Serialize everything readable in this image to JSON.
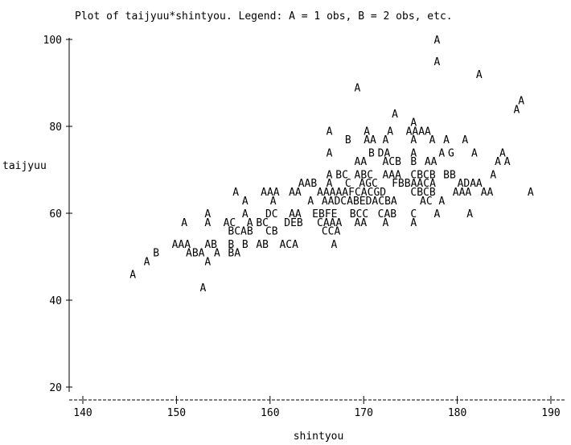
{
  "chart_data": {
    "type": "scatter",
    "title": "Plot of taijyuu*shintyou.  Legend: A = 1 obs, B = 2 obs, etc.",
    "xlabel": "shintyou",
    "ylabel": "taijyuu",
    "xlim": [
      138.5,
      192
    ],
    "ylim": [
      18.5,
      101.5
    ],
    "x_ticks": [
      140,
      150,
      160,
      170,
      180,
      190
    ],
    "y_ticks": [
      20,
      40,
      60,
      80,
      100
    ],
    "legend_note": "symbol letter encodes count: A = 1 obs, B = 2 obs, C = 3 obs, ...",
    "points": [
      {
        "x": 177.5,
        "y": 100,
        "label": "A"
      },
      {
        "x": 177.5,
        "y": 95,
        "label": "A"
      },
      {
        "x": 182.0,
        "y": 92,
        "label": "A"
      },
      {
        "x": 169.0,
        "y": 89,
        "label": "A"
      },
      {
        "x": 186.5,
        "y": 86,
        "label": "A"
      },
      {
        "x": 186.0,
        "y": 84,
        "label": "A"
      },
      {
        "x": 173.0,
        "y": 83,
        "label": "A"
      },
      {
        "x": 175.0,
        "y": 81,
        "label": "A"
      },
      {
        "x": 166.0,
        "y": 79,
        "label": "A"
      },
      {
        "x": 170.0,
        "y": 79,
        "label": "A"
      },
      {
        "x": 172.5,
        "y": 79,
        "label": "A"
      },
      {
        "x": 174.5,
        "y": 79,
        "label": "AAAA"
      },
      {
        "x": 168.0,
        "y": 77,
        "label": "B"
      },
      {
        "x": 170.0,
        "y": 77,
        "label": "AA"
      },
      {
        "x": 172.0,
        "y": 77,
        "label": "A"
      },
      {
        "x": 175.0,
        "y": 77,
        "label": "A"
      },
      {
        "x": 177.0,
        "y": 77,
        "label": "A"
      },
      {
        "x": 178.5,
        "y": 77,
        "label": "A"
      },
      {
        "x": 180.5,
        "y": 77,
        "label": "A"
      },
      {
        "x": 166.0,
        "y": 74,
        "label": "A"
      },
      {
        "x": 170.5,
        "y": 74,
        "label": "B"
      },
      {
        "x": 171.5,
        "y": 74,
        "label": "DA"
      },
      {
        "x": 175.0,
        "y": 74,
        "label": "A"
      },
      {
        "x": 178.0,
        "y": 74,
        "label": "A"
      },
      {
        "x": 179.0,
        "y": 74,
        "label": "G"
      },
      {
        "x": 181.5,
        "y": 74,
        "label": "A"
      },
      {
        "x": 184.5,
        "y": 74,
        "label": "A"
      },
      {
        "x": 169.0,
        "y": 72,
        "label": "AA"
      },
      {
        "x": 172.0,
        "y": 72,
        "label": "ACB"
      },
      {
        "x": 175.0,
        "y": 72,
        "label": "B"
      },
      {
        "x": 176.5,
        "y": 72,
        "label": "AA"
      },
      {
        "x": 184.0,
        "y": 72,
        "label": "A"
      },
      {
        "x": 185.0,
        "y": 72,
        "label": "A"
      },
      {
        "x": 166.0,
        "y": 69,
        "label": "A"
      },
      {
        "x": 167.0,
        "y": 69,
        "label": "BC"
      },
      {
        "x": 169.0,
        "y": 69,
        "label": "ABC"
      },
      {
        "x": 172.0,
        "y": 69,
        "label": "AAA"
      },
      {
        "x": 175.0,
        "y": 69,
        "label": "CBCB"
      },
      {
        "x": 178.5,
        "y": 69,
        "label": "BB"
      },
      {
        "x": 183.5,
        "y": 69,
        "label": "A"
      },
      {
        "x": 163.0,
        "y": 67,
        "label": "AAB"
      },
      {
        "x": 166.0,
        "y": 67,
        "label": "A"
      },
      {
        "x": 168.0,
        "y": 67,
        "label": "C"
      },
      {
        "x": 169.5,
        "y": 67,
        "label": "AGC"
      },
      {
        "x": 173.0,
        "y": 67,
        "label": "FBBAACA"
      },
      {
        "x": 180.0,
        "y": 67,
        "label": "ADA"
      },
      {
        "x": 182.0,
        "y": 67,
        "label": "A"
      },
      {
        "x": 156.0,
        "y": 65,
        "label": "A"
      },
      {
        "x": 159.0,
        "y": 65,
        "label": "AAA"
      },
      {
        "x": 162.0,
        "y": 65,
        "label": "AA"
      },
      {
        "x": 165.0,
        "y": 65,
        "label": "AAAAAFCACGD"
      },
      {
        "x": 175.0,
        "y": 65,
        "label": "CBCB"
      },
      {
        "x": 179.5,
        "y": 65,
        "label": "AAA"
      },
      {
        "x": 182.5,
        "y": 65,
        "label": "AA"
      },
      {
        "x": 187.5,
        "y": 65,
        "label": "A"
      },
      {
        "x": 157.0,
        "y": 63,
        "label": "A"
      },
      {
        "x": 160.0,
        "y": 63,
        "label": "A"
      },
      {
        "x": 164.0,
        "y": 63,
        "label": "A"
      },
      {
        "x": 165.5,
        "y": 63,
        "label": "AADCABEDACBA"
      },
      {
        "x": 176.0,
        "y": 63,
        "label": "AC"
      },
      {
        "x": 178.0,
        "y": 63,
        "label": "A"
      },
      {
        "x": 153.0,
        "y": 60,
        "label": "A"
      },
      {
        "x": 157.0,
        "y": 60,
        "label": "A"
      },
      {
        "x": 159.5,
        "y": 60,
        "label": "DC"
      },
      {
        "x": 162.0,
        "y": 60,
        "label": "AA"
      },
      {
        "x": 164.5,
        "y": 60,
        "label": "EBFE"
      },
      {
        "x": 168.5,
        "y": 60,
        "label": "BCC"
      },
      {
        "x": 171.5,
        "y": 60,
        "label": "CAB"
      },
      {
        "x": 175.0,
        "y": 60,
        "label": "C"
      },
      {
        "x": 177.5,
        "y": 60,
        "label": "A"
      },
      {
        "x": 181.0,
        "y": 60,
        "label": "A"
      },
      {
        "x": 150.5,
        "y": 58,
        "label": "A"
      },
      {
        "x": 153.0,
        "y": 58,
        "label": "A"
      },
      {
        "x": 155.0,
        "y": 58,
        "label": "AC"
      },
      {
        "x": 157.5,
        "y": 58,
        "label": "A"
      },
      {
        "x": 158.5,
        "y": 58,
        "label": "BC"
      },
      {
        "x": 161.5,
        "y": 58,
        "label": "DEB"
      },
      {
        "x": 165.0,
        "y": 58,
        "label": "CAAA"
      },
      {
        "x": 169.0,
        "y": 58,
        "label": "AA"
      },
      {
        "x": 172.0,
        "y": 58,
        "label": "A"
      },
      {
        "x": 175.0,
        "y": 58,
        "label": "A"
      },
      {
        "x": 155.5,
        "y": 56,
        "label": "BCAB"
      },
      {
        "x": 159.5,
        "y": 56,
        "label": "CB"
      },
      {
        "x": 165.5,
        "y": 56,
        "label": "CCA"
      },
      {
        "x": 149.5,
        "y": 53,
        "label": "AAA"
      },
      {
        "x": 153.0,
        "y": 53,
        "label": "AB"
      },
      {
        "x": 155.5,
        "y": 53,
        "label": "B"
      },
      {
        "x": 157.0,
        "y": 53,
        "label": "B"
      },
      {
        "x": 158.5,
        "y": 53,
        "label": "AB"
      },
      {
        "x": 161.0,
        "y": 53,
        "label": "ACA"
      },
      {
        "x": 166.5,
        "y": 53,
        "label": "A"
      },
      {
        "x": 147.5,
        "y": 51,
        "label": "B"
      },
      {
        "x": 151.0,
        "y": 51,
        "label": "ABA"
      },
      {
        "x": 154.0,
        "y": 51,
        "label": "A"
      },
      {
        "x": 155.5,
        "y": 51,
        "label": "BA"
      },
      {
        "x": 146.5,
        "y": 49,
        "label": "A"
      },
      {
        "x": 153.0,
        "y": 49,
        "label": "A"
      },
      {
        "x": 145.0,
        "y": 46,
        "label": "A"
      },
      {
        "x": 152.5,
        "y": 43,
        "label": "A"
      }
    ]
  }
}
